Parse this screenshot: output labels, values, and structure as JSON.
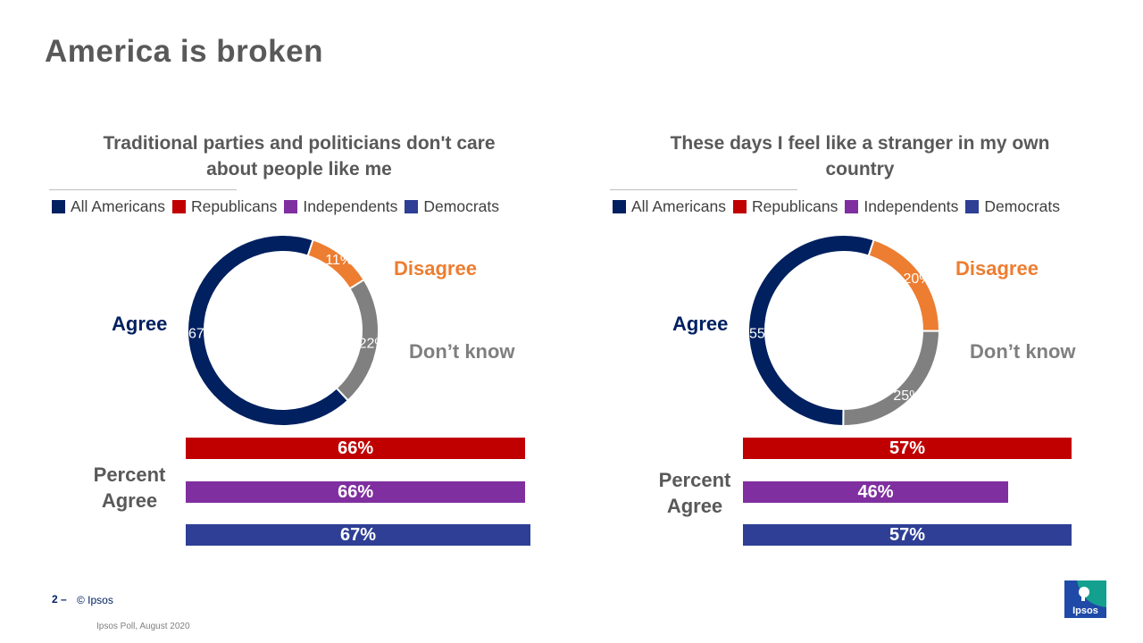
{
  "page": {
    "title": "America is broken",
    "footer_num": "2 –",
    "footer_copy": "© Ipsos",
    "footer_source": "Ipsos Poll, August 2020",
    "logo_text": "Ipsos"
  },
  "legend": [
    {
      "label": "All Americans",
      "color": "#002060"
    },
    {
      "label": "Republicans",
      "color": "#C00000"
    },
    {
      "label": "Independents",
      "color": "#7F2F9F"
    },
    {
      "label": "Democrats",
      "color": "#2E3F95"
    }
  ],
  "labels": {
    "agree": "Agree",
    "disagree": "Disagree",
    "dont_know": "Don’t know",
    "percent_agree": "Percent Agree"
  },
  "chart_data": [
    {
      "type": "pie",
      "title": "Traditional parties and politicians don't care about people like me",
      "donut": {
        "categories": [
          "Agree",
          "Disagree",
          "Don’t know"
        ],
        "values": [
          67,
          11,
          22
        ],
        "value_labels": [
          "67%",
          "11%",
          "22%"
        ],
        "colors": [
          "#002060",
          "#ED7D31",
          "#808080"
        ]
      },
      "bars": {
        "type": "bar",
        "orientation": "horizontal",
        "categories": [
          "Republicans",
          "Independents",
          "Democrats"
        ],
        "values": [
          66,
          66,
          67
        ],
        "value_labels": [
          "66%",
          "66%",
          "67%"
        ],
        "colors": [
          "#C00000",
          "#7F2F9F",
          "#2E3F95"
        ]
      }
    },
    {
      "type": "pie",
      "title": "These days I feel like a stranger in my own country",
      "donut": {
        "categories": [
          "Agree",
          "Disagree",
          "Don’t know"
        ],
        "values": [
          55,
          20,
          25
        ],
        "value_labels": [
          "55%",
          "20%",
          "25%"
        ],
        "colors": [
          "#002060",
          "#ED7D31",
          "#808080"
        ]
      },
      "bars": {
        "type": "bar",
        "orientation": "horizontal",
        "categories": [
          "Republicans",
          "Independents",
          "Democrats"
        ],
        "values": [
          57,
          46,
          57
        ],
        "value_labels": [
          "57%",
          "46%",
          "57%"
        ],
        "colors": [
          "#C00000",
          "#7F2F9F",
          "#2E3F95"
        ]
      }
    }
  ]
}
